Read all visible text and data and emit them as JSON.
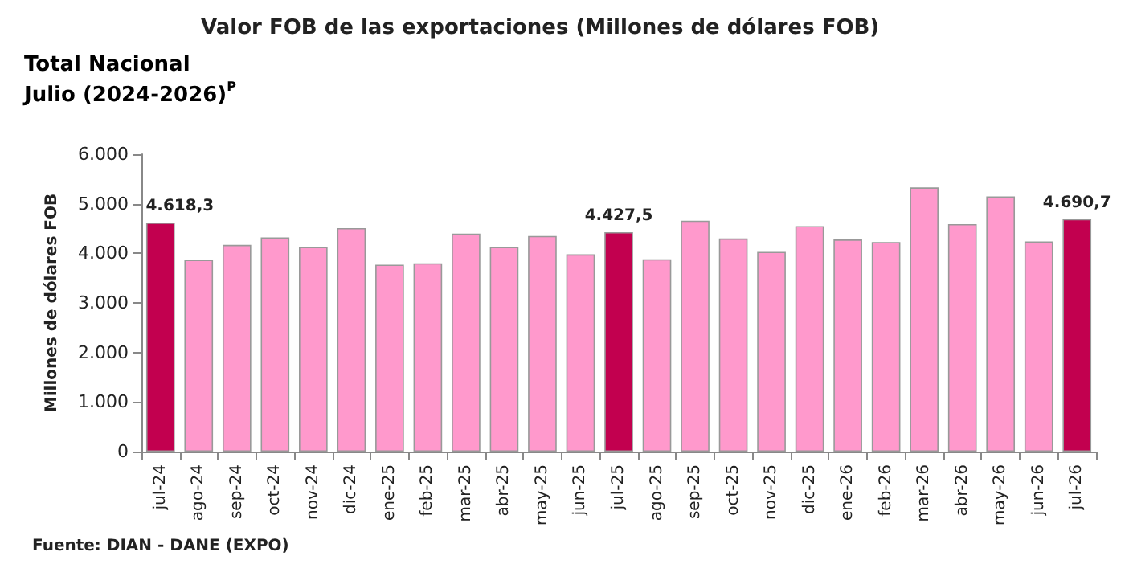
{
  "chart_data": {
    "type": "bar",
    "title": "Valor FOB de las exportaciones (Millones de dólares FOB)",
    "subtitle": "Total Nacional\nJulio (2024-2026)$^{P}$",
    "ylabel": "Millones de dólares FOB",
    "annotations": [
      "Fuente: DIAN - DANE (EXPO)"
    ],
    "categories": [
      "jul-24",
      "ago-24",
      "sep-24",
      "oct-24",
      "nov-24",
      "dic-24",
      "ene-25",
      "feb-25",
      "mar-25",
      "abr-25",
      "may-25",
      "jun-25",
      "jul-25",
      "ago-25",
      "sep-25",
      "oct-25",
      "nov-25",
      "dic-25",
      "ene-26",
      "feb-26",
      "mar-26",
      "abr-26",
      "may-26",
      "jun-26",
      "jul-26"
    ],
    "values": [
      4618.3,
      3870,
      4170,
      4320,
      4130,
      4510,
      3770,
      3800,
      4400,
      4130,
      4350,
      3980,
      4427.5,
      3880,
      4660,
      4300,
      4030,
      4550,
      4280,
      4230,
      5330,
      4590,
      5150,
      4240,
      4690.7
    ],
    "value_labels": [
      "4.618,3",
      null,
      null,
      null,
      null,
      null,
      null,
      null,
      null,
      null,
      null,
      null,
      "4.427,5",
      null,
      null,
      null,
      null,
      null,
      null,
      null,
      null,
      null,
      null,
      null,
      "4.690,7"
    ],
    "colors": [
      "#c2004f",
      "#ff99cc",
      "#ff99cc",
      "#ff99cc",
      "#ff99cc",
      "#ff99cc",
      "#ff99cc",
      "#ff99cc",
      "#ff99cc",
      "#ff99cc",
      "#ff99cc",
      "#ff99cc",
      "#c2004f",
      "#ff99cc",
      "#ff99cc",
      "#ff99cc",
      "#ff99cc",
      "#ff99cc",
      "#ff99cc",
      "#ff99cc",
      "#ff99cc",
      "#ff99cc",
      "#ff99cc",
      "#ff99cc",
      "#c2004f"
    ],
    "ylim": [
      0,
      6000
    ],
    "yticks": [
      {
        "value": 0,
        "label": "0"
      },
      {
        "value": 1000,
        "label": "1.000"
      },
      {
        "value": 2000,
        "label": "2.000"
      },
      {
        "value": 3000,
        "label": "3.000"
      },
      {
        "value": 4000,
        "label": "4.000"
      },
      {
        "value": 5000,
        "label": "5.000"
      },
      {
        "value": 6000,
        "label": "6.000"
      }
    ],
    "grid": false
  }
}
